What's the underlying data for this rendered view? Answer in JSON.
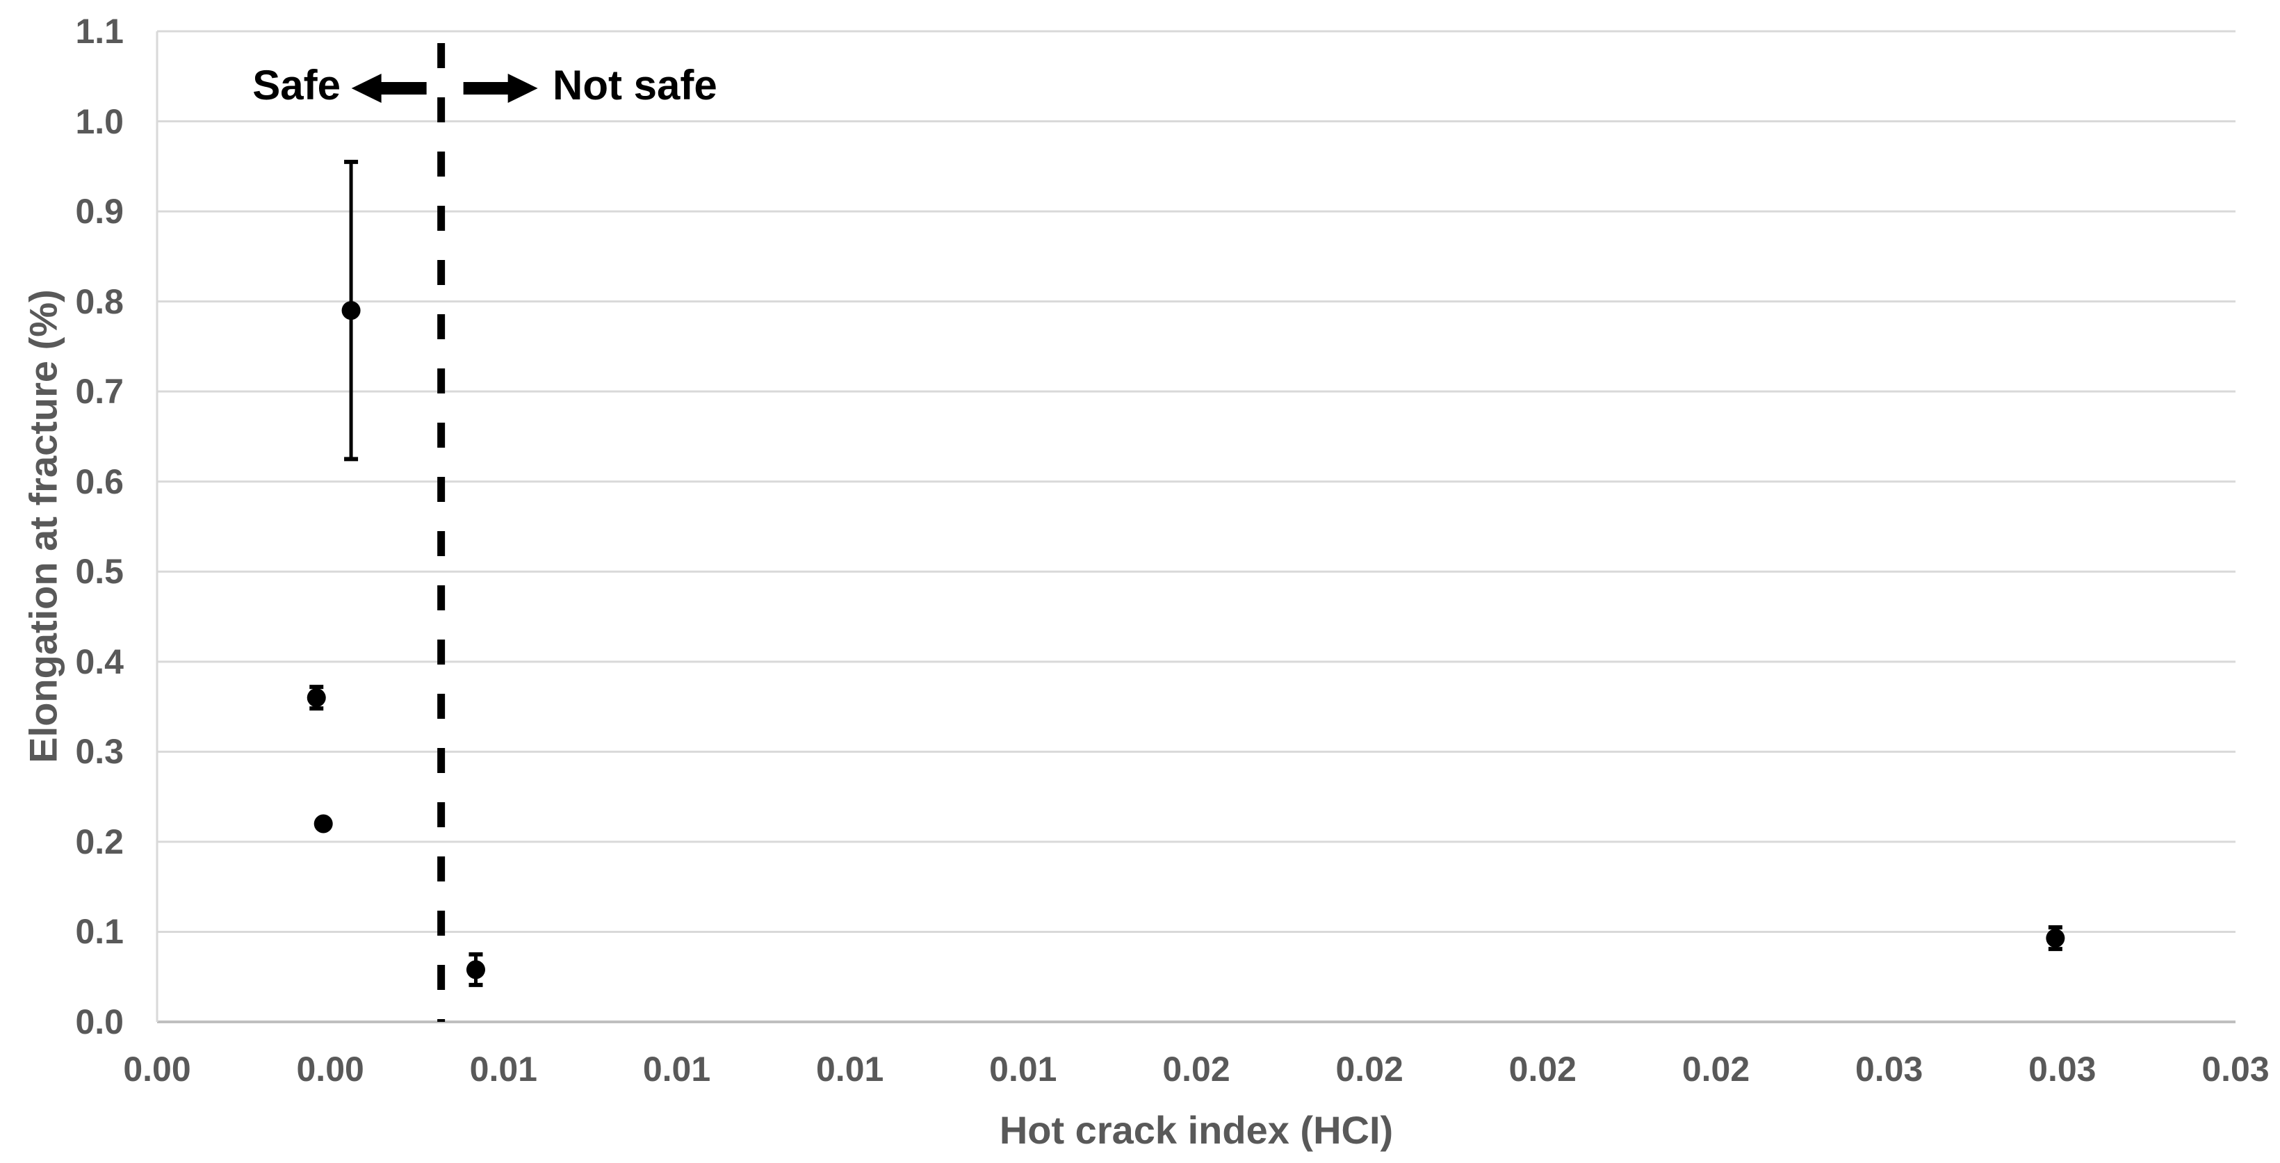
{
  "chart_data": {
    "type": "scatter",
    "title": "",
    "xlabel": "Hot crack index (HCI)",
    "ylabel": "Elongation at fracture (%)",
    "xlim": [
      0,
      0.03
    ],
    "ylim": [
      0,
      1.1
    ],
    "x_tick_step": 0.0025,
    "y_tick_step": 0.1,
    "x_tick_labels": [
      "0.00",
      "0.00",
      "0.01",
      "0.01",
      "0.01",
      "0.01",
      "0.02",
      "0.02",
      "0.02",
      "0.02",
      "0.03",
      "0.03",
      "0.03"
    ],
    "y_tick_labels": [
      "0.0",
      "0.1",
      "0.2",
      "0.3",
      "0.4",
      "0.5",
      "0.6",
      "0.7",
      "0.8",
      "0.9",
      "1.0",
      "1.1"
    ],
    "grid": "horizontal",
    "legend": "none",
    "series": [
      {
        "name": "Elongation at fracture",
        "marker": "filled-circle",
        "points": [
          {
            "x": 0.0028,
            "y": 0.79,
            "yerr": 0.165
          },
          {
            "x": 0.0023,
            "y": 0.36,
            "yerr": 0.012
          },
          {
            "x": 0.0024,
            "y": 0.22,
            "yerr": 0
          },
          {
            "x": 0.0046,
            "y": 0.058,
            "yerr": 0.017
          },
          {
            "x": 0.0274,
            "y": 0.093,
            "yerr": 0.012
          }
        ]
      }
    ],
    "threshold_line": {
      "x": 0.0041,
      "style": "dashed",
      "orientation": "vertical"
    },
    "annotations": {
      "safe_label": "Safe",
      "not_safe_label": "Not safe"
    },
    "colors": {
      "marker": "#000000",
      "error_bar": "#000000",
      "grid": "#d9d9d9",
      "axis_line": "#bfbfbf",
      "axis_text": "#595959",
      "annotation_text": "#000000",
      "threshold": "#000000",
      "background": "#ffffff"
    }
  }
}
